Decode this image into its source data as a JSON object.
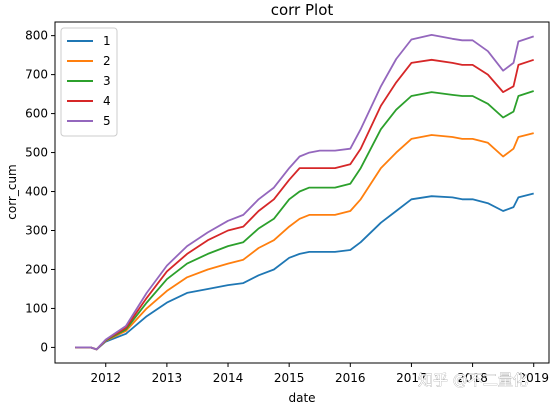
{
  "watermark": "知乎 @不二量化",
  "chart_data": {
    "type": "line",
    "title": "corr Plot",
    "xlabel": "date",
    "ylabel": "corr_cum",
    "x_ticks": [
      "2012",
      "2013",
      "2014",
      "2015",
      "2016",
      "2017",
      "2018",
      "2019"
    ],
    "y_ticks": [
      0,
      100,
      200,
      300,
      400,
      500,
      600,
      700,
      800
    ],
    "xlim": [
      2011.17,
      2019.25
    ],
    "ylim": [
      -40,
      835
    ],
    "grid": false,
    "legend_position": "top-left",
    "x": [
      2011.5,
      2011.75,
      2011.85,
      2012.0,
      2012.33,
      2012.67,
      2013.0,
      2013.33,
      2013.67,
      2014.0,
      2014.25,
      2014.5,
      2014.75,
      2015.0,
      2015.17,
      2015.33,
      2015.5,
      2015.75,
      2016.0,
      2016.17,
      2016.5,
      2016.75,
      2017.0,
      2017.33,
      2017.67,
      2017.83,
      2018.0,
      2018.25,
      2018.5,
      2018.67,
      2018.75,
      2019.0
    ],
    "series": [
      {
        "name": "1",
        "color": "#1f77b4",
        "values": [
          0,
          0,
          -5,
          15,
          35,
          80,
          115,
          140,
          150,
          160,
          165,
          185,
          200,
          230,
          240,
          245,
          245,
          245,
          250,
          270,
          320,
          350,
          380,
          388,
          385,
          380,
          380,
          370,
          350,
          360,
          385,
          395
        ]
      },
      {
        "name": "2",
        "color": "#ff7f0e",
        "values": [
          0,
          0,
          -5,
          17,
          42,
          100,
          145,
          180,
          200,
          215,
          225,
          255,
          275,
          310,
          330,
          340,
          340,
          340,
          350,
          380,
          460,
          500,
          535,
          545,
          540,
          535,
          535,
          525,
          490,
          510,
          540,
          550
        ]
      },
      {
        "name": "3",
        "color": "#2ca02c",
        "values": [
          0,
          0,
          -5,
          18,
          46,
          115,
          175,
          215,
          240,
          260,
          270,
          305,
          330,
          380,
          400,
          410,
          410,
          410,
          420,
          460,
          560,
          610,
          645,
          655,
          648,
          645,
          645,
          625,
          590,
          605,
          645,
          658
        ]
      },
      {
        "name": "4",
        "color": "#d62728",
        "values": [
          0,
          0,
          -5,
          19,
          50,
          127,
          195,
          240,
          275,
          300,
          310,
          350,
          380,
          430,
          460,
          460,
          460,
          460,
          470,
          510,
          620,
          680,
          730,
          738,
          730,
          725,
          725,
          700,
          655,
          670,
          725,
          738
        ]
      },
      {
        "name": "5",
        "color": "#9467bd",
        "values": [
          0,
          0,
          -5,
          20,
          55,
          140,
          210,
          260,
          295,
          325,
          340,
          380,
          410,
          460,
          490,
          500,
          505,
          505,
          510,
          560,
          670,
          740,
          790,
          802,
          792,
          788,
          788,
          760,
          710,
          730,
          785,
          798
        ]
      }
    ]
  }
}
